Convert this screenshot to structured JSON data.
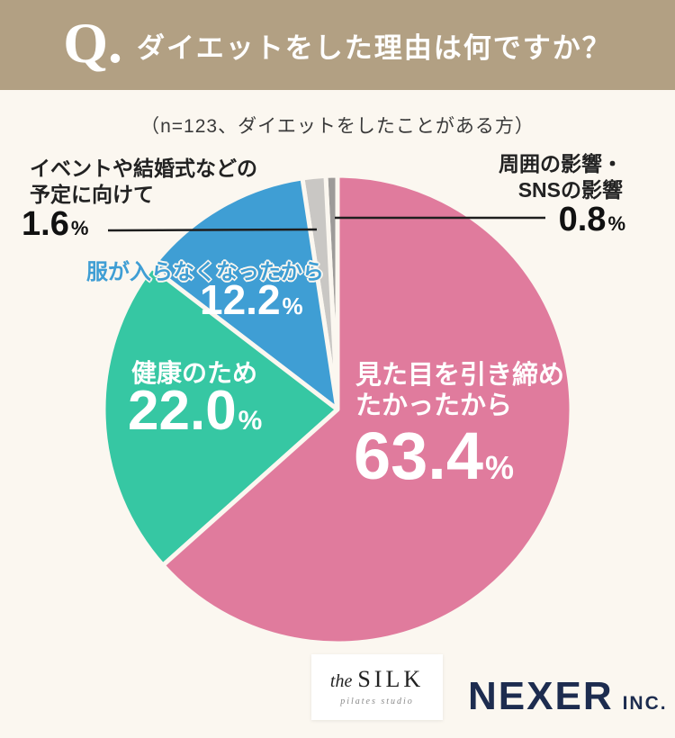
{
  "banner": {
    "q_mark": "Q.",
    "title": "ダイエットをした理由は何ですか？",
    "bg_color": "#b2a083"
  },
  "note": "（n=123、ダイエットをしたことがある方）",
  "chart_data": {
    "type": "pie",
    "title": "ダイエットをした理由は何ですか？",
    "note": "n=123、ダイエットをしたことがある方",
    "unit": "%",
    "start_angle_deg": 0,
    "direction": "clockwise",
    "categories": [
      "見た目を引き締めたかったから",
      "健康のため",
      "服が入らなくなったから",
      "イベントや結婚式などの予定に向けて",
      "周囲の影響・SNSの影響"
    ],
    "values": [
      63.4,
      22.0,
      12.2,
      1.6,
      0.8
    ],
    "colors": [
      "#e07b9d",
      "#36c7a3",
      "#3f9ed4",
      "#c9c7c4",
      "#9d9b99"
    ],
    "background": "#fbf7f0"
  },
  "labels": {
    "appearance": {
      "line1": "見た目を引き締め",
      "line2": "たかったから",
      "value": "63.4",
      "unit": "%"
    },
    "health": {
      "line1": "健康のため",
      "value": "22.0",
      "unit": "%"
    },
    "clothes": {
      "line1": "服が入らなくなったから",
      "value": "12.2",
      "unit": "%"
    },
    "event": {
      "line1": "イベントや結婚式などの",
      "line2": "予定に向けて",
      "value": "1.6",
      "unit": "%"
    },
    "sns": {
      "line1": "周囲の影響・",
      "line2": "SNSの影響",
      "value": "0.8",
      "unit": "%"
    }
  },
  "footer": {
    "silk": {
      "the": "the",
      "name": "SILK",
      "tagline": "pilates studio"
    },
    "nexer": {
      "name": "NEXER",
      "suffix": "INC."
    }
  }
}
